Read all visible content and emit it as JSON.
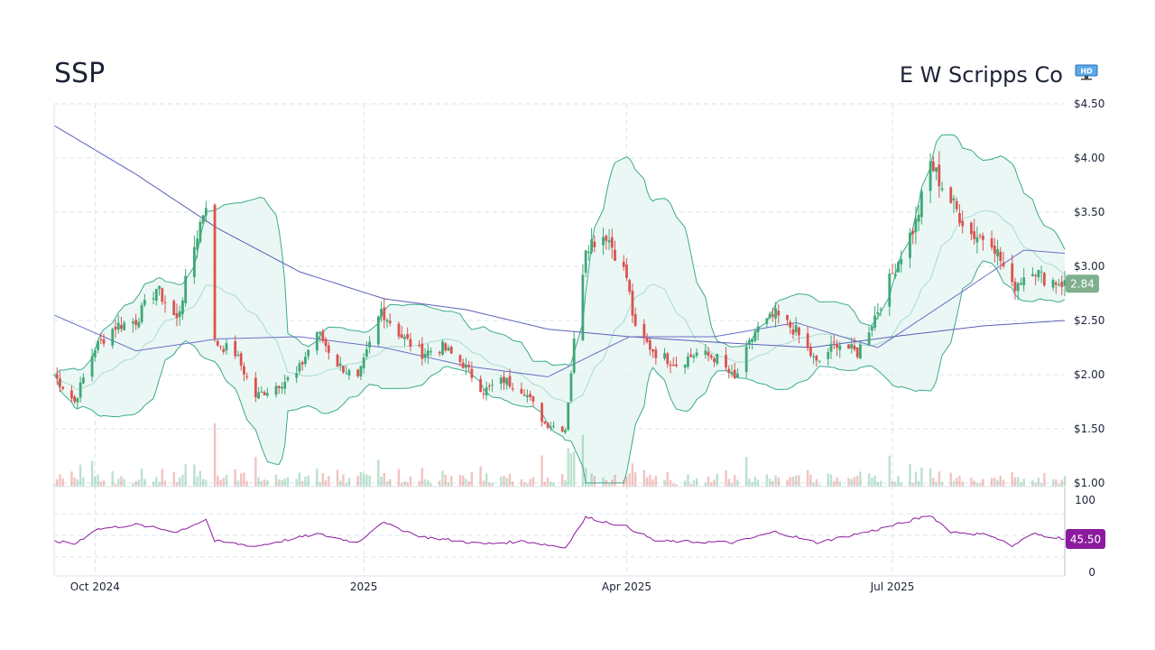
{
  "header": {
    "ticker": "SSP",
    "company": "E W Scripps Co",
    "badge_icon": "hd-monitor-icon"
  },
  "chart_data": {
    "type": "candlestick",
    "price_axis": {
      "ticks": [
        {
          "value": 4.5,
          "label": "$4.50"
        },
        {
          "value": 4.0,
          "label": "$4.00"
        },
        {
          "value": 3.5,
          "label": "$3.50"
        },
        {
          "value": 3.0,
          "label": "$3.00"
        },
        {
          "value": 2.5,
          "label": "$2.50"
        },
        {
          "value": 2.0,
          "label": "$2.00"
        },
        {
          "value": 1.5,
          "label": "$1.50"
        },
        {
          "value": 1.0,
          "label": "$1.00"
        }
      ],
      "ylim": [
        1.0,
        4.5
      ],
      "last_price": 2.84,
      "last_price_label": "2.84"
    },
    "rsi_axis": {
      "ticks": [
        {
          "value": 100,
          "label": "100"
        },
        {
          "value": 0,
          "label": "0"
        }
      ],
      "ylim": [
        0,
        100
      ],
      "last_value": 45.5,
      "last_value_label": "45.50"
    },
    "x_axis": {
      "ticks": [
        {
          "date": "2024-10-01",
          "label": "Oct 2024"
        },
        {
          "date": "2025-01-01",
          "label": "2025"
        },
        {
          "date": "2025-04-01",
          "label": "Apr 2025"
        },
        {
          "date": "2025-07-01",
          "label": "Jul 2025"
        }
      ],
      "range": [
        "2024-09-17",
        "2025-08-29"
      ]
    },
    "grid": true,
    "price_keypoints": [
      [
        "2024-09-17",
        2.0
      ],
      [
        "2024-09-24",
        1.75
      ],
      [
        "2024-10-01",
        2.25
      ],
      [
        "2024-10-08",
        2.45
      ],
      [
        "2024-10-15",
        2.5
      ],
      [
        "2024-10-22",
        2.8
      ],
      [
        "2024-10-29",
        2.5
      ],
      [
        "2024-11-05",
        3.3
      ],
      [
        "2024-11-08",
        3.6
      ],
      [
        "2024-11-11",
        2.3
      ],
      [
        "2024-11-18",
        2.2
      ],
      [
        "2024-11-25",
        1.8
      ],
      [
        "2024-12-02",
        1.9
      ],
      [
        "2024-12-09",
        2.0
      ],
      [
        "2024-12-16",
        2.4
      ],
      [
        "2024-12-23",
        2.1
      ],
      [
        "2024-12-30",
        1.95
      ],
      [
        "2025-01-07",
        2.6
      ],
      [
        "2025-01-14",
        2.35
      ],
      [
        "2025-01-21",
        2.2
      ],
      [
        "2025-01-28",
        2.25
      ],
      [
        "2025-02-04",
        2.1
      ],
      [
        "2025-02-11",
        1.85
      ],
      [
        "2025-02-18",
        1.95
      ],
      [
        "2025-02-25",
        1.85
      ],
      [
        "2025-03-04",
        1.55
      ],
      [
        "2025-03-11",
        1.5
      ],
      [
        "2025-03-14",
        2.3
      ],
      [
        "2025-03-18",
        3.2
      ],
      [
        "2025-03-25",
        3.3
      ],
      [
        "2025-04-01",
        2.9
      ],
      [
        "2025-04-04",
        2.4
      ],
      [
        "2025-04-11",
        2.2
      ],
      [
        "2025-04-18",
        2.1
      ],
      [
        "2025-04-25",
        2.2
      ],
      [
        "2025-05-02",
        2.15
      ],
      [
        "2025-05-08",
        1.95
      ],
      [
        "2025-05-15",
        2.4
      ],
      [
        "2025-05-22",
        2.55
      ],
      [
        "2025-05-29",
        2.4
      ],
      [
        "2025-06-05",
        2.1
      ],
      [
        "2025-06-12",
        2.3
      ],
      [
        "2025-06-19",
        2.2
      ],
      [
        "2025-06-26",
        2.6
      ],
      [
        "2025-07-02",
        3.0
      ],
      [
        "2025-07-09",
        3.4
      ],
      [
        "2025-07-14",
        3.95
      ],
      [
        "2025-07-21",
        3.6
      ],
      [
        "2025-07-28",
        3.3
      ],
      [
        "2025-08-04",
        3.25
      ],
      [
        "2025-08-11",
        2.8
      ],
      [
        "2025-08-18",
        3.0
      ],
      [
        "2025-08-21",
        2.9
      ],
      [
        "2025-08-29",
        2.84
      ]
    ],
    "sma50_keypoints": [
      [
        "2024-09-17",
        2.55
      ],
      [
        "2024-10-15",
        2.22
      ],
      [
        "2024-11-12",
        2.33
      ],
      [
        "2024-12-10",
        2.35
      ],
      [
        "2025-01-08",
        2.25
      ],
      [
        "2025-02-05",
        2.08
      ],
      [
        "2025-03-05",
        1.98
      ],
      [
        "2025-04-02",
        2.35
      ],
      [
        "2025-05-01",
        2.35
      ],
      [
        "2025-05-29",
        2.48
      ],
      [
        "2025-06-26",
        2.25
      ],
      [
        "2025-07-24",
        2.75
      ],
      [
        "2025-08-15",
        3.15
      ],
      [
        "2025-08-29",
        3.12
      ]
    ],
    "sma200_keypoints": [
      [
        "2024-09-17",
        4.3
      ],
      [
        "2024-10-15",
        3.85
      ],
      [
        "2024-11-12",
        3.35
      ],
      [
        "2024-12-10",
        2.95
      ],
      [
        "2025-01-08",
        2.7
      ],
      [
        "2025-02-05",
        2.6
      ],
      [
        "2025-03-05",
        2.42
      ],
      [
        "2025-04-02",
        2.35
      ],
      [
        "2025-05-01",
        2.3
      ],
      [
        "2025-06-03",
        2.25
      ],
      [
        "2025-07-01",
        2.35
      ],
      [
        "2025-08-01",
        2.45
      ],
      [
        "2025-08-29",
        2.5
      ]
    ],
    "rsi_keypoints": [
      [
        "2024-09-17",
        42
      ],
      [
        "2024-09-24",
        38
      ],
      [
        "2024-10-01",
        58
      ],
      [
        "2024-10-15",
        65
      ],
      [
        "2024-10-29",
        55
      ],
      [
        "2024-11-08",
        72
      ],
      [
        "2024-11-11",
        42
      ],
      [
        "2024-11-25",
        35
      ],
      [
        "2024-12-16",
        52
      ],
      [
        "2024-12-30",
        40
      ],
      [
        "2025-01-07",
        68
      ],
      [
        "2025-01-21",
        48
      ],
      [
        "2025-02-11",
        38
      ],
      [
        "2025-02-25",
        42
      ],
      [
        "2025-03-11",
        33
      ],
      [
        "2025-03-18",
        75
      ],
      [
        "2025-04-01",
        62
      ],
      [
        "2025-04-11",
        42
      ],
      [
        "2025-05-08",
        40
      ],
      [
        "2025-05-22",
        55
      ],
      [
        "2025-06-05",
        40
      ],
      [
        "2025-06-26",
        58
      ],
      [
        "2025-07-14",
        78
      ],
      [
        "2025-07-21",
        55
      ],
      [
        "2025-08-04",
        50
      ],
      [
        "2025-08-11",
        35
      ],
      [
        "2025-08-18",
        52
      ],
      [
        "2025-08-29",
        45.5
      ]
    ],
    "colors": {
      "up": "#3fa877",
      "down": "#d9534f",
      "bollinger_line": "#3aab8c",
      "bollinger_fill": "#e4f4f1",
      "sma50": "#6a6ec9",
      "sma200": "#5a5fb8",
      "rsi": "#8b1a9e",
      "price_tag": "#7fb08e",
      "rsi_tag": "#8b1a9e"
    }
  }
}
